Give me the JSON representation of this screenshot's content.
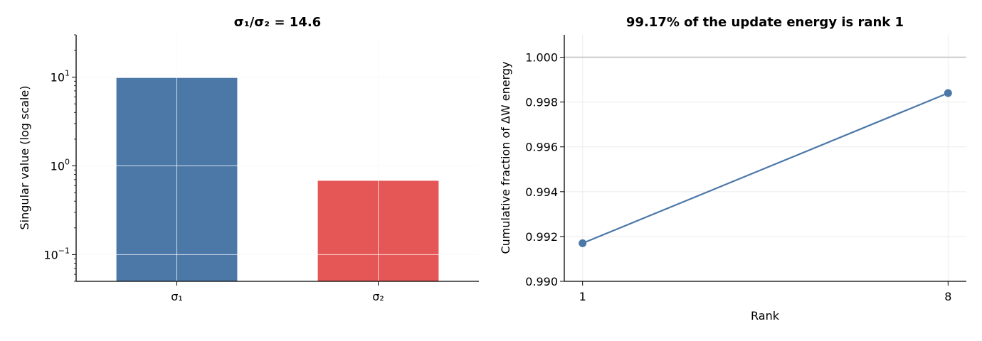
{
  "chart_data": [
    {
      "type": "bar",
      "title": "σ₁/σ₂ = 14.6",
      "categories": [
        "σ₁",
        "σ₂"
      ],
      "values": [
        9.8,
        0.68
      ],
      "ylabel": "Singular value (log scale)",
      "xlabel": "",
      "yscale": "log",
      "ylim": [
        0.05,
        30
      ],
      "yticks": [
        {
          "value": 0.1,
          "base": "10",
          "exp": "−1"
        },
        {
          "value": 1,
          "base": "10",
          "exp": "0"
        },
        {
          "value": 10,
          "base": "10",
          "exp": "1"
        }
      ],
      "colors": [
        "#4c78a8",
        "#e45756"
      ],
      "grid": true
    },
    {
      "type": "line",
      "title": "99.17% of the update energy is rank 1",
      "x": [
        1,
        8
      ],
      "y": [
        0.9917,
        0.9984
      ],
      "xlabel": "Rank",
      "ylabel": "Cumulative fraction of ΔW energy",
      "xlim": [
        0.65,
        8.35
      ],
      "ylim": [
        0.99,
        1.001
      ],
      "xticks": [
        "1",
        "8"
      ],
      "yticks": [
        "0.990",
        "0.992",
        "0.994",
        "0.996",
        "0.998",
        "1.000"
      ],
      "reference_line": 1.0,
      "color": "#4c78a8",
      "grid": true
    }
  ]
}
